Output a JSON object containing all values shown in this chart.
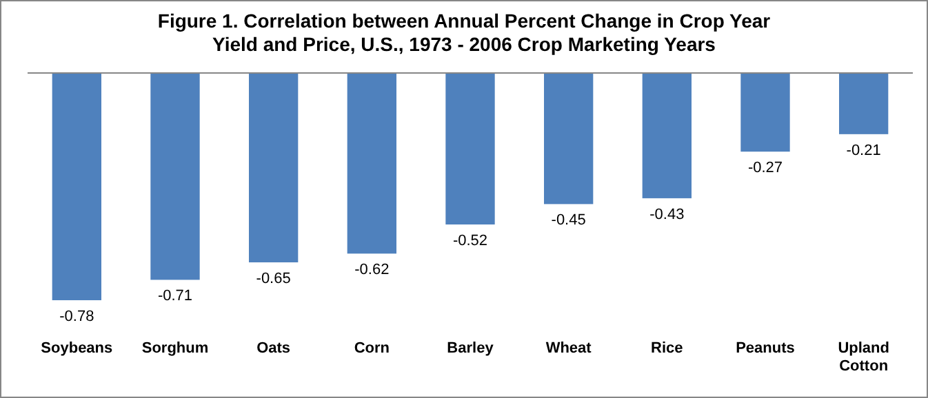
{
  "chart_data": {
    "type": "bar",
    "title": "Figure 1.  Correlation between Annual Percent Change in Crop Year Yield and Price,  U.S., 1973 - 2006 Crop Marketing Years",
    "categories": [
      "Soybeans",
      "Sorghum",
      "Oats",
      "Corn",
      "Barley",
      "Wheat",
      "Rice",
      "Peanuts",
      "Upland Cotton"
    ],
    "values": [
      -0.78,
      -0.71,
      -0.65,
      -0.62,
      -0.52,
      -0.45,
      -0.43,
      -0.27,
      -0.21
    ],
    "color": "#4f81bd",
    "data_labels": true
  }
}
